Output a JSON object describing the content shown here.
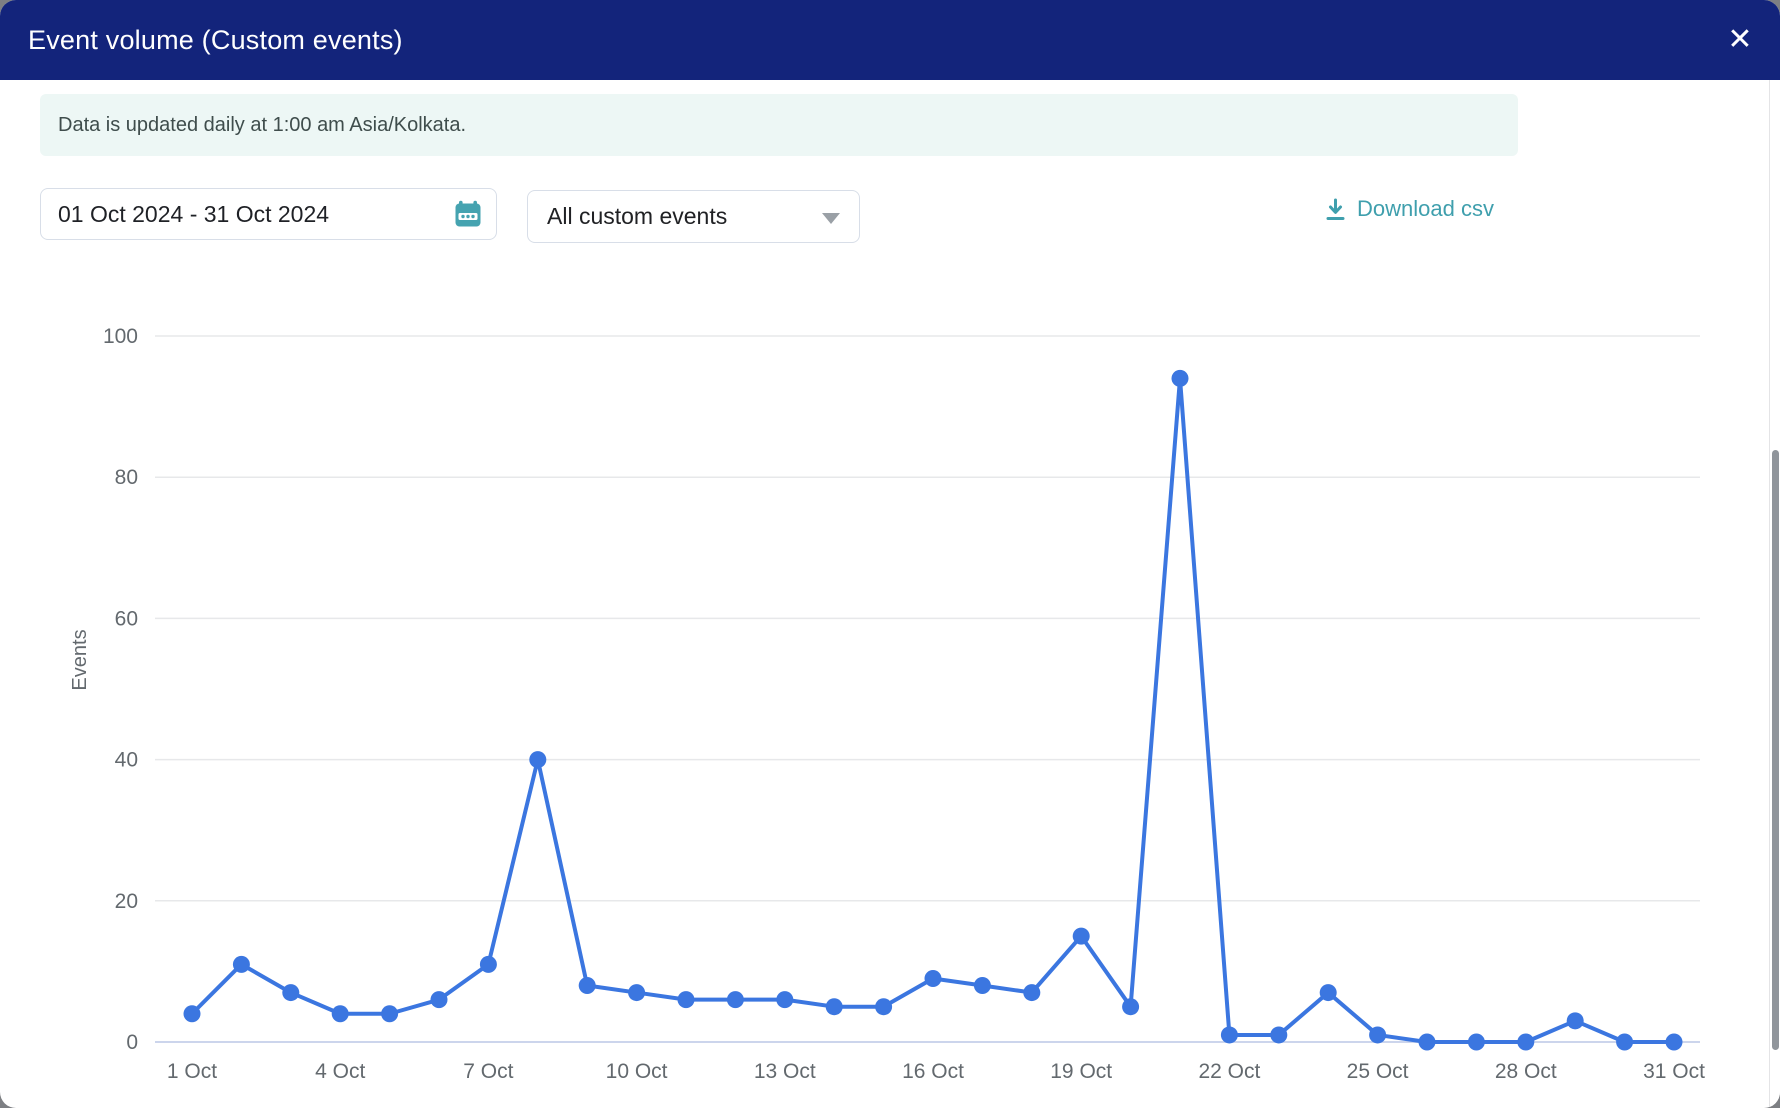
{
  "modal": {
    "title": "Event volume (Custom events)",
    "close_label": "✕"
  },
  "banner": {
    "text": "Data is updated daily at 1:00 am Asia/Kolkata."
  },
  "controls": {
    "date_range_value": "01 Oct 2024 - 31 Oct 2024",
    "event_filter_value": "All custom events",
    "download_label": "Download csv"
  },
  "icons": {
    "calendar": "calendar-icon",
    "download": "download-icon",
    "dropdown_caret": "chevron-down-icon",
    "close": "close-icon"
  },
  "colors": {
    "header_bg": "#13247b",
    "banner_bg": "#edf7f5",
    "accent_teal": "#3f9fad",
    "calendar_icon_teal": "#45a3b0",
    "series_blue": "#3b76e0",
    "gridline": "#e7e8ea",
    "zero_line": "#ccd5ec",
    "axis_text": "#63696e",
    "field_border": "#d8dee8"
  },
  "chart_data": {
    "type": "line",
    "title": "Event volume (Custom events)",
    "xlabel": "",
    "ylabel": "Events",
    "ylim": [
      0,
      100
    ],
    "yticks": [
      0,
      20,
      40,
      60,
      80,
      100
    ],
    "grid": true,
    "legend": false,
    "x": [
      "1 Oct",
      "2 Oct",
      "3 Oct",
      "4 Oct",
      "5 Oct",
      "6 Oct",
      "7 Oct",
      "8 Oct",
      "9 Oct",
      "10 Oct",
      "11 Oct",
      "12 Oct",
      "13 Oct",
      "14 Oct",
      "15 Oct",
      "16 Oct",
      "17 Oct",
      "18 Oct",
      "19 Oct",
      "20 Oct",
      "21 Oct",
      "22 Oct",
      "23 Oct",
      "24 Oct",
      "25 Oct",
      "26 Oct",
      "27 Oct",
      "28 Oct",
      "29 Oct",
      "30 Oct",
      "31 Oct"
    ],
    "values": [
      4,
      11,
      7,
      4,
      4,
      6,
      11,
      40,
      8,
      7,
      6,
      6,
      6,
      5,
      5,
      9,
      8,
      7,
      15,
      5,
      94,
      1,
      1,
      7,
      1,
      0,
      0,
      0,
      3,
      0,
      0
    ],
    "x_tick_days": [
      1,
      4,
      7,
      10,
      13,
      16,
      19,
      22,
      25,
      28,
      31
    ],
    "x_tick_labels": [
      "1 Oct",
      "4 Oct",
      "7 Oct",
      "10 Oct",
      "13 Oct",
      "16 Oct",
      "19 Oct",
      "22 Oct",
      "25 Oct",
      "28 Oct",
      "31 Oct"
    ]
  }
}
